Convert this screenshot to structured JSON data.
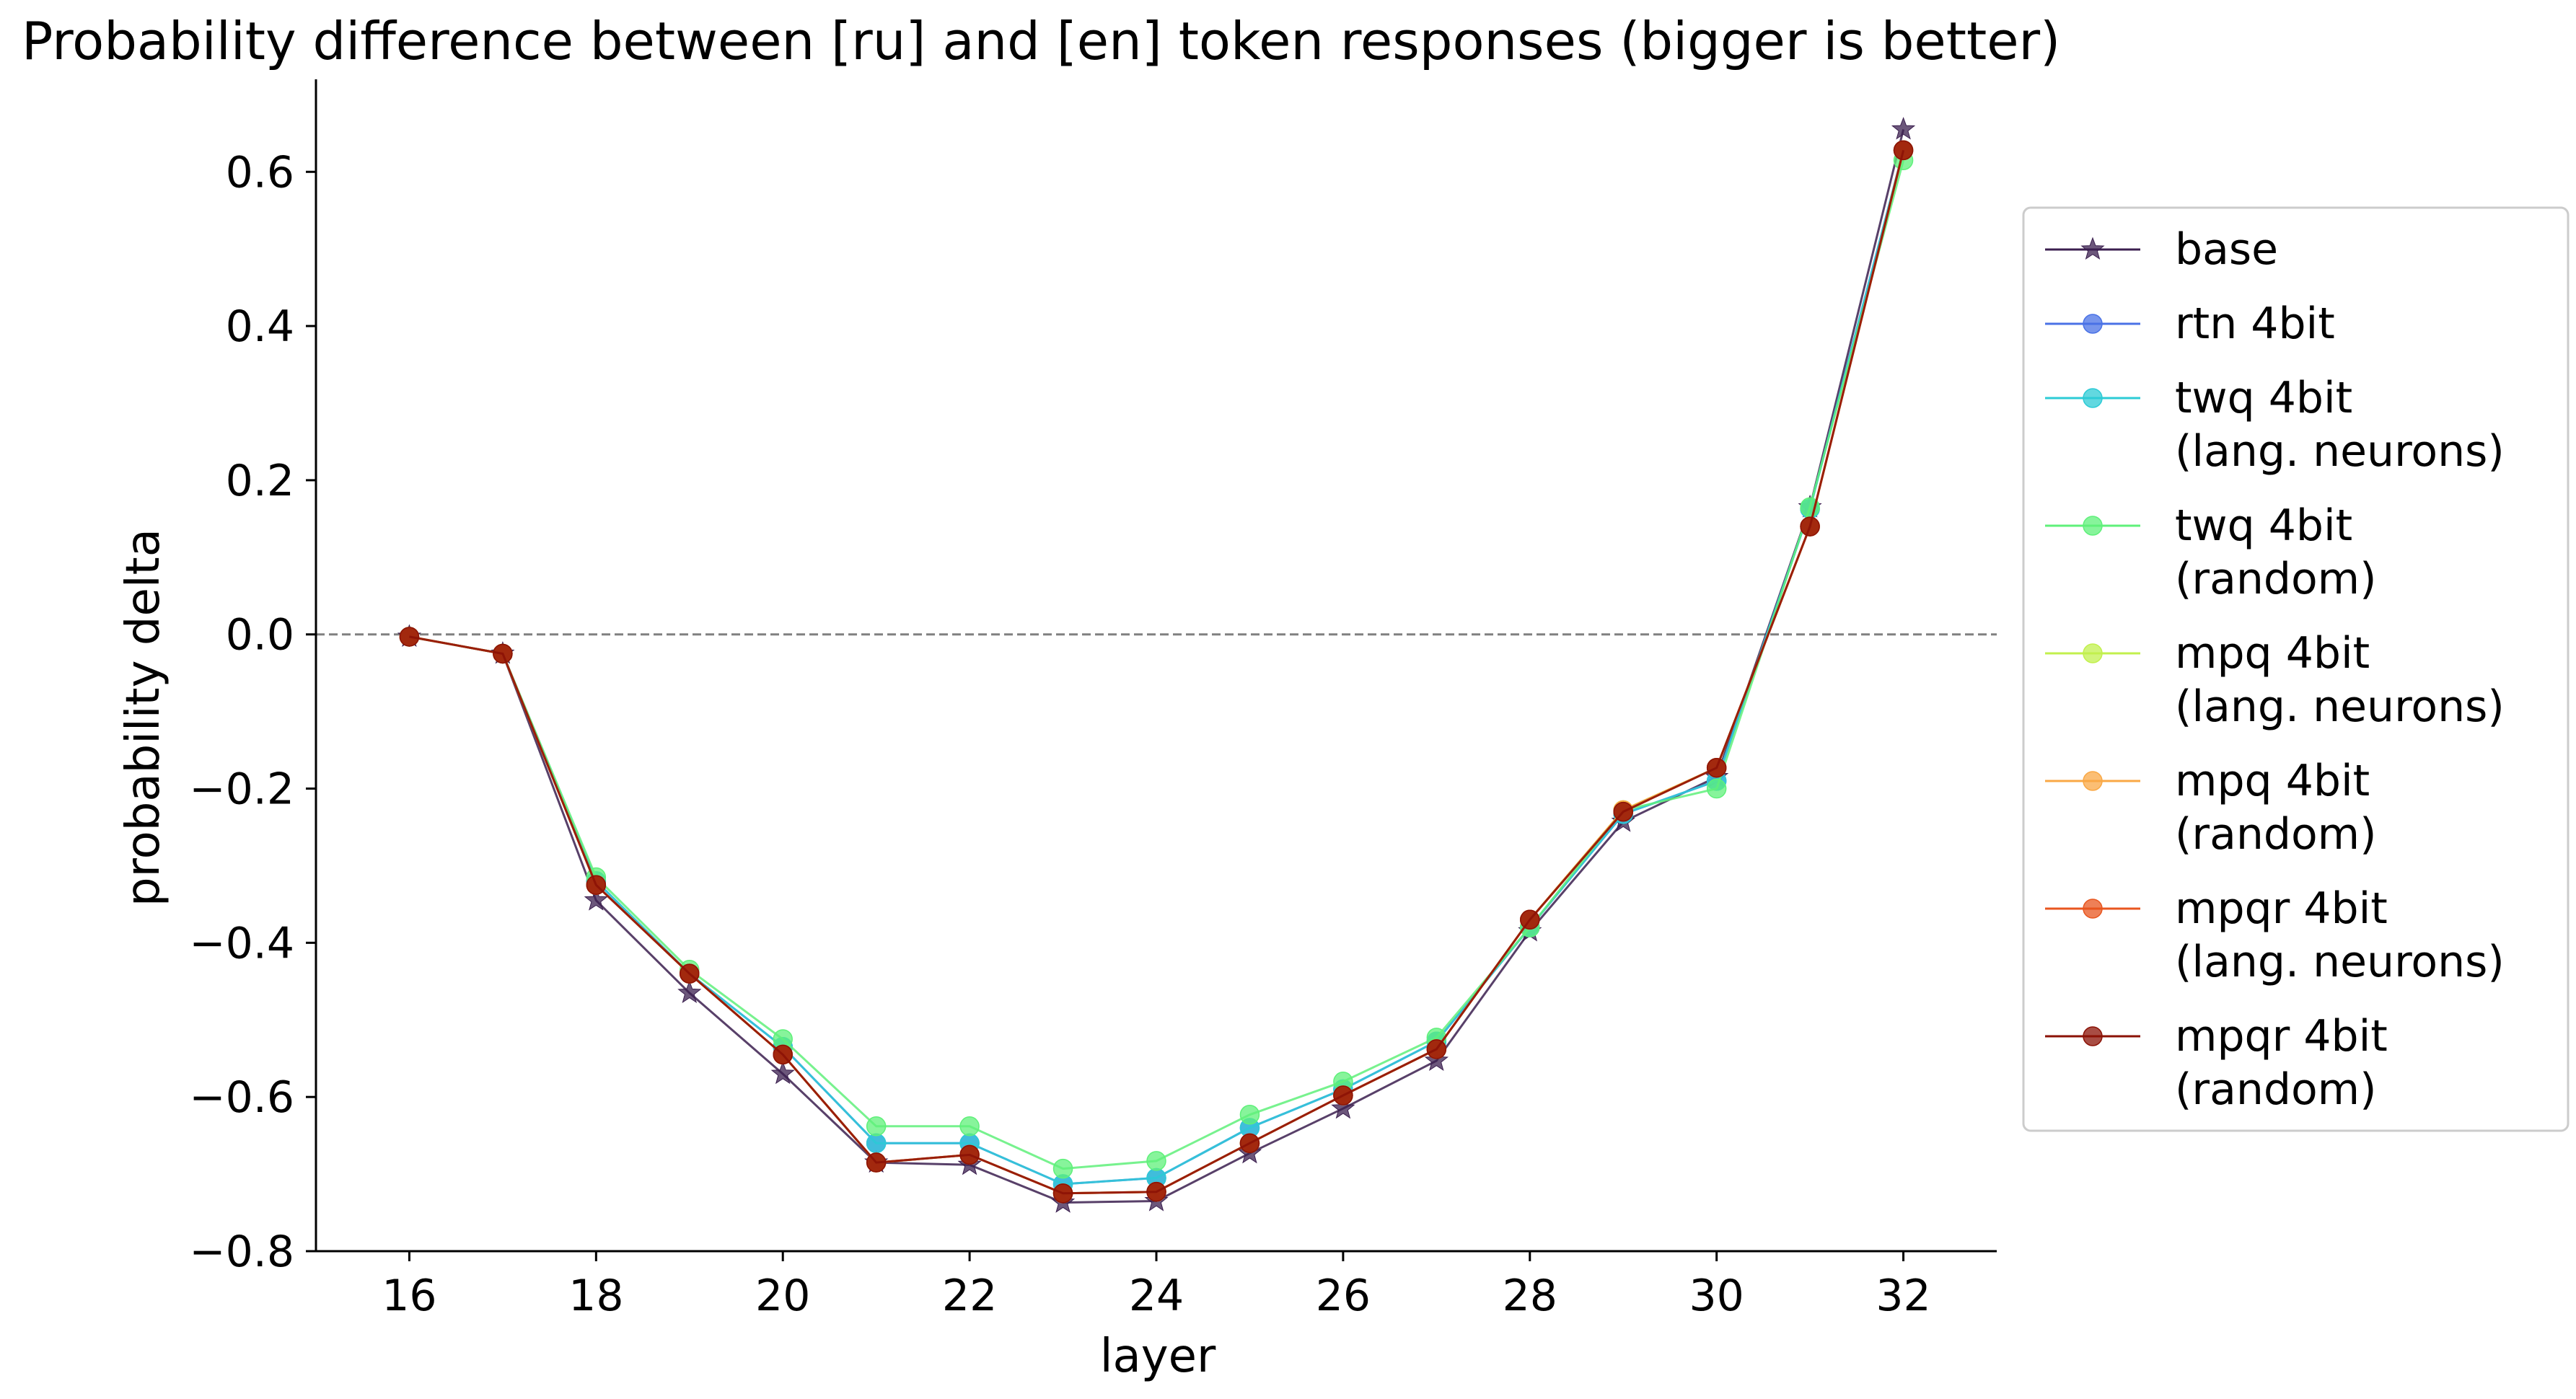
{
  "chart_data": {
    "type": "line",
    "title": "Probability difference between [ru] and [en] token responses (bigger is better)",
    "xlabel": "layer",
    "ylabel": "probability delta",
    "xlim": [
      15,
      33
    ],
    "ylim": [
      -0.8,
      0.72
    ],
    "xticks": [
      16,
      18,
      20,
      22,
      24,
      26,
      28,
      30,
      32
    ],
    "xtick_labels": [
      "16",
      "18",
      "20",
      "22",
      "24",
      "26",
      "28",
      "30",
      "32"
    ],
    "yticks": [
      -0.8,
      -0.6,
      -0.4,
      -0.2,
      0.0,
      0.2,
      0.4,
      0.6
    ],
    "ytick_labels": [
      "−0.8",
      "−0.6",
      "−0.4",
      "−0.2",
      "0.0",
      "0.2",
      "0.4",
      "0.6"
    ],
    "reference_line": {
      "y": 0.0,
      "style": "dashed",
      "color": "#808080"
    },
    "grid": false,
    "legend_position": "outside-right",
    "x": [
      16,
      17,
      18,
      19,
      20,
      21,
      22,
      23,
      24,
      25,
      26,
      27,
      28,
      29,
      30,
      31,
      32
    ],
    "series": [
      {
        "name": "base",
        "legend": [
          "base"
        ],
        "marker": "star",
        "color": "#3b1f4f",
        "values": [
          -0.003,
          -0.025,
          -0.345,
          -0.465,
          -0.57,
          -0.685,
          -0.688,
          -0.737,
          -0.735,
          -0.673,
          -0.615,
          -0.553,
          -0.385,
          -0.243,
          -0.185,
          0.165,
          0.655
        ]
      },
      {
        "name": "rtn 4bit",
        "legend": [
          "rtn 4bit"
        ],
        "marker": "circle",
        "color": "#4a72e6",
        "values": [
          -0.003,
          -0.025,
          -0.32,
          -0.44,
          -0.535,
          -0.66,
          -0.66,
          -0.713,
          -0.705,
          -0.64,
          -0.59,
          -0.528,
          -0.38,
          -0.233,
          -0.19,
          0.163,
          0.628
        ]
      },
      {
        "name": "twq 4bit (lang. neurons)",
        "legend": [
          "twq 4bit",
          "(lang. neurons)"
        ],
        "marker": "circle",
        "color": "#2dcbd6",
        "values": [
          -0.003,
          -0.025,
          -0.32,
          -0.44,
          -0.535,
          -0.66,
          -0.66,
          -0.713,
          -0.705,
          -0.64,
          -0.59,
          -0.528,
          -0.38,
          -0.233,
          -0.19,
          0.163,
          0.628
        ]
      },
      {
        "name": "twq 4bit (random)",
        "legend": [
          "twq 4bit",
          "(random)"
        ],
        "marker": "circle",
        "color": "#5ff07a",
        "values": [
          -0.003,
          -0.025,
          -0.315,
          -0.435,
          -0.525,
          -0.638,
          -0.638,
          -0.693,
          -0.683,
          -0.623,
          -0.58,
          -0.523,
          -0.38,
          -0.228,
          -0.2,
          0.165,
          0.615
        ]
      },
      {
        "name": "mpq 4bit (lang. neurons)",
        "legend": [
          "mpq 4bit",
          "(lang. neurons)"
        ],
        "marker": "circle",
        "color": "#c2f04d",
        "values": [
          -0.003,
          -0.025,
          -0.325,
          -0.44,
          -0.545,
          -0.685,
          -0.675,
          -0.725,
          -0.723,
          -0.66,
          -0.598,
          -0.538,
          -0.37,
          -0.228,
          -0.173,
          0.14,
          0.628
        ]
      },
      {
        "name": "mpq 4bit (random)",
        "legend": [
          "mpq 4bit",
          "(random)"
        ],
        "marker": "circle",
        "color": "#f9a845",
        "values": [
          -0.003,
          -0.025,
          -0.325,
          -0.44,
          -0.545,
          -0.685,
          -0.675,
          -0.725,
          -0.723,
          -0.66,
          -0.598,
          -0.538,
          -0.37,
          -0.228,
          -0.173,
          0.14,
          0.628
        ]
      },
      {
        "name": "mpqr 4bit (lang. neurons)",
        "legend": [
          "mpqr 4bit",
          "(lang. neurons)"
        ],
        "marker": "circle",
        "color": "#e8561f",
        "values": [
          -0.003,
          -0.025,
          -0.325,
          -0.44,
          -0.545,
          -0.685,
          -0.675,
          -0.725,
          -0.723,
          -0.66,
          -0.598,
          -0.538,
          -0.37,
          -0.23,
          -0.173,
          0.14,
          0.628
        ]
      },
      {
        "name": "mpqr 4bit (random)",
        "legend": [
          "mpqr 4bit",
          "(random)"
        ],
        "marker": "circle",
        "color": "#8b1206",
        "values": [
          -0.003,
          -0.025,
          -0.325,
          -0.44,
          -0.545,
          -0.685,
          -0.675,
          -0.725,
          -0.723,
          -0.66,
          -0.598,
          -0.538,
          -0.37,
          -0.23,
          -0.173,
          0.14,
          0.628
        ]
      }
    ]
  }
}
